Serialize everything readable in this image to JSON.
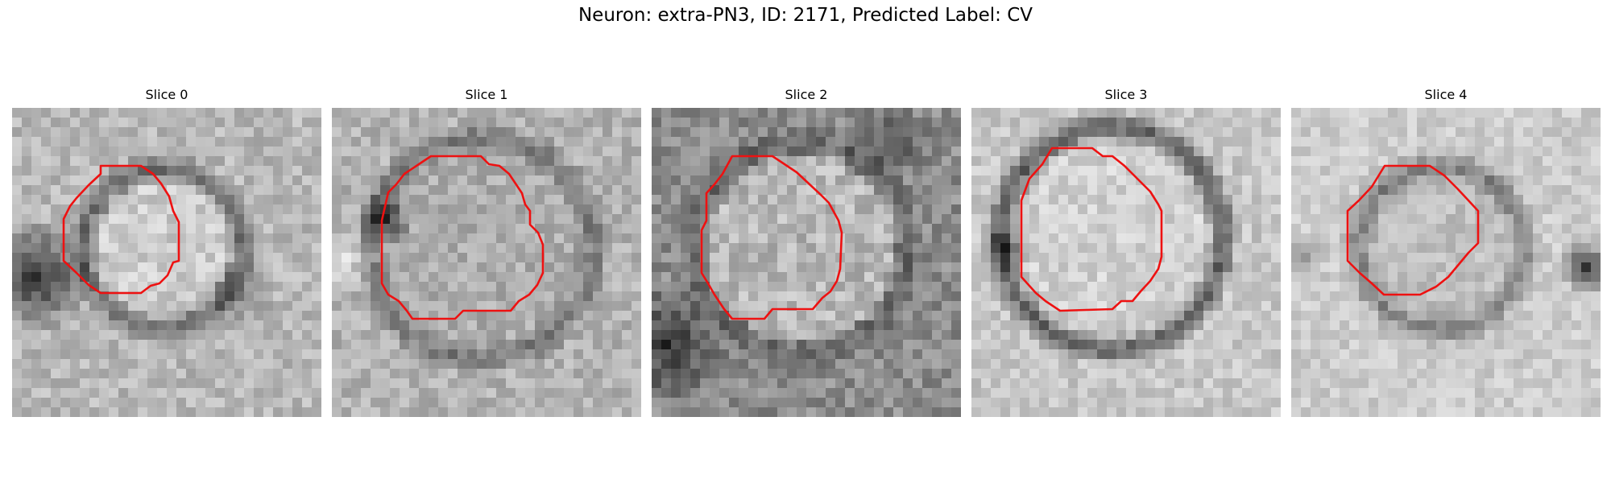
{
  "figure": {
    "title": "Neuron: extra-PN3, ID: 2171, Predicted Label: CV"
  },
  "panels": [
    {
      "title": "Slice 0"
    },
    {
      "title": "Slice 1"
    },
    {
      "title": "Slice 2"
    },
    {
      "title": "Slice 3"
    },
    {
      "title": "Slice 4"
    }
  ],
  "colors": {
    "contour": "#ee1111",
    "background": "#ffffff"
  }
}
